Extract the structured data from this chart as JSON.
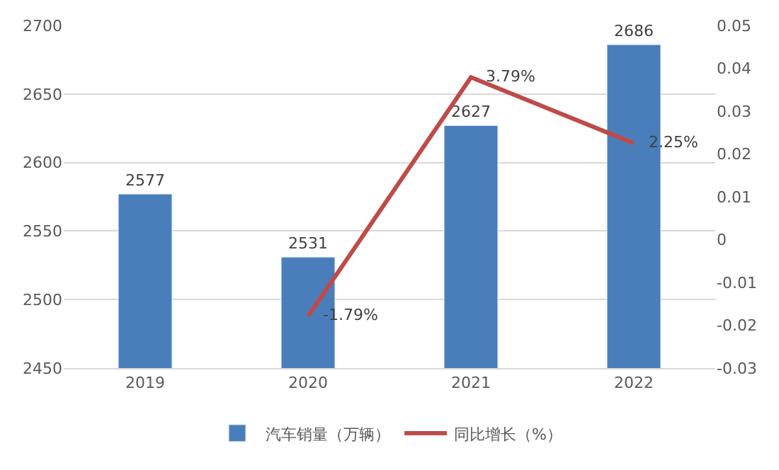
{
  "chart_data": {
    "type": "bar",
    "categories": [
      "2019",
      "2020",
      "2021",
      "2022"
    ],
    "series": [
      {
        "name": "汽车销量（万辆）",
        "color": "#4a7ebb",
        "values": [
          2577,
          2531,
          2627,
          2686
        ],
        "value_labels": [
          "2577",
          "2531",
          "2627",
          "2686"
        ]
      },
      {
        "name": "同比增长（%）",
        "color": "#be4b48",
        "type": "line",
        "axis": "y2",
        "values": [
          null,
          -0.0179,
          0.0379,
          0.0225
        ],
        "value_labels": [
          null,
          "-1.79%",
          "3.79%",
          "2.25%"
        ]
      }
    ],
    "ylim": [
      2450,
      2700
    ],
    "yticks": [
      2450,
      2500,
      2550,
      2600,
      2650,
      2700
    ],
    "y2lim": [
      -0.03,
      0.05
    ],
    "y2ticks": [
      -0.03,
      -0.02,
      -0.01,
      0,
      0.01,
      0.02,
      0.03,
      0.04,
      0.05
    ],
    "grid": "y",
    "legend": "bottom",
    "marker": "none"
  }
}
